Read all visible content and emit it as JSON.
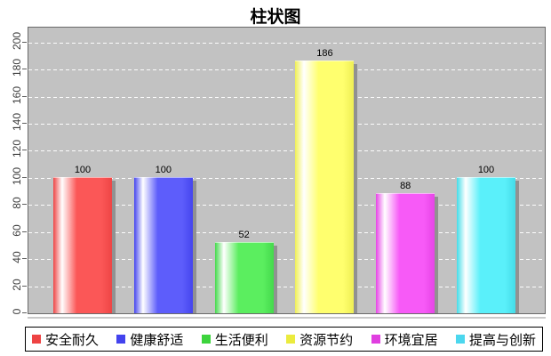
{
  "title": "柱状图",
  "chart_data": {
    "type": "bar",
    "title": "柱状图",
    "categories": [
      ""
    ],
    "series": [
      {
        "name": "安全耐久",
        "values": [
          100
        ],
        "color": "#fb5757",
        "edge_color": "#ee4545",
        "legend_color": "#ee4343"
      },
      {
        "name": "健康舒适",
        "values": [
          100
        ],
        "color": "#5d5dfb",
        "edge_color": "#4545ee",
        "legend_color": "#4343ee"
      },
      {
        "name": "生活便利",
        "values": [
          52
        ],
        "color": "#5bee5f",
        "edge_color": "#44d94c",
        "legend_color": "#3dd43d"
      },
      {
        "name": "资源节约",
        "values": [
          186
        ],
        "color": "#ffff6e",
        "edge_color": "#efef55",
        "legend_color": "#ebeb3e"
      },
      {
        "name": "环境宜居",
        "values": [
          88
        ],
        "color": "#f75af7",
        "edge_color": "#e644e6",
        "legend_color": "#e03fe0"
      },
      {
        "name": "提高与创新",
        "values": [
          100
        ],
        "color": "#5af0fa",
        "edge_color": "#44dce8",
        "legend_color": "#4cd7ee"
      }
    ],
    "value_labels": [
      "100",
      "100",
      "52",
      "186",
      "88",
      "100"
    ],
    "xlabel": "",
    "ylabel": "",
    "ylim": [
      0,
      211
    ],
    "yticks": [
      0,
      20,
      40,
      60,
      80,
      100,
      120,
      140,
      160,
      180,
      200
    ],
    "grid": "dashed-white-horizontal",
    "legend_position": "bottom"
  },
  "colors": {
    "page_bg": "#ffffff",
    "plot_bg": "#c2c2c2",
    "plot_border": "#6a6a6a",
    "gridline": "#ffffff",
    "bar_shadow": "#919191",
    "axis_line": "#c9c9c9",
    "tick_label": "#3d3d3d",
    "title": "#000000",
    "legend_border": "#000000",
    "legend_text": "#000000"
  }
}
